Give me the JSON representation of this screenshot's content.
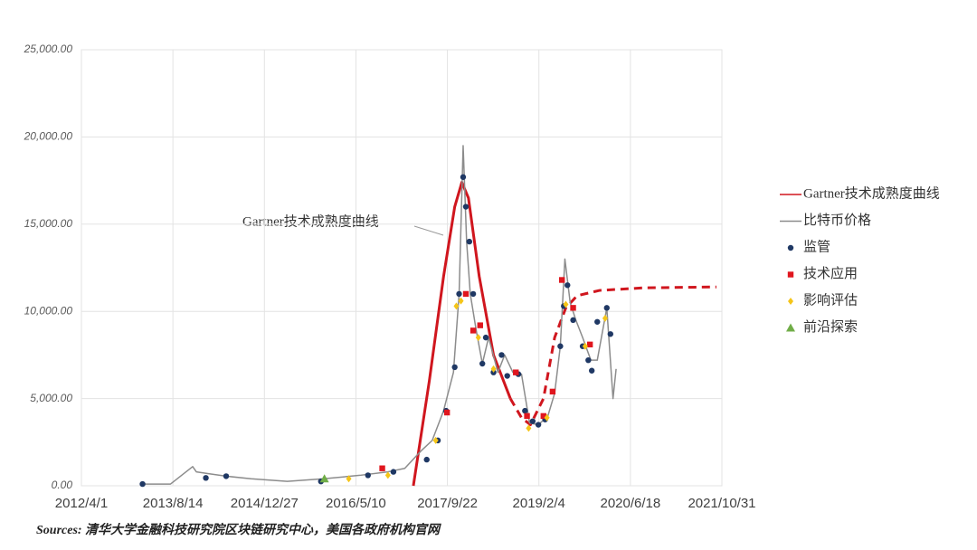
{
  "chart_data": {
    "type": "combo",
    "annotation": "Gartner技术成熟度曲线",
    "source": "Sources: 清华大学金融科技研究院区块链研究中心，美国各政府机构官网",
    "xlim": [
      "2012/4/1",
      "2021/10/31"
    ],
    "xticks": [
      "2012/4/1",
      "2013/8/14",
      "2014/12/27",
      "2016/5/10",
      "2017/9/22",
      "2019/2/4",
      "2020/6/18",
      "2021/10/31"
    ],
    "ylim": [
      0,
      25000
    ],
    "yticks": [
      {
        "value": 0,
        "label": "0.00"
      },
      {
        "value": 5000,
        "label": "5,000.00"
      },
      {
        "value": 10000,
        "label": "10,000.00"
      },
      {
        "value": 15000,
        "label": "15,000.00"
      },
      {
        "value": 20000,
        "label": "20,000.00"
      },
      {
        "value": 25000,
        "label": "25,000.00"
      }
    ],
    "grid": true,
    "series": [
      {
        "name": "Gartner技术成熟度曲线",
        "kind": "line",
        "color": "#d0161e",
        "width": 3,
        "x": [
          "2017/3/20",
          "2017/6/15",
          "2017/9/1",
          "2017/11/1",
          "2017/12/10",
          "2018/1/15",
          "2018/3/15",
          "2018/6/1",
          "2018/9/1",
          "2018/11/1",
          "2018/12/20",
          "2019/3/1",
          "2019/5/1",
          "2019/7/1",
          "2019/9/1",
          "2020/1/1",
          "2020/9/1",
          "2021/10/1"
        ],
        "values": [
          0,
          6000,
          12000,
          16000,
          17400,
          16500,
          12000,
          7500,
          5000,
          3900,
          3500,
          5000,
          8500,
          10200,
          10900,
          11200,
          11350,
          11400
        ],
        "styles": [
          "solid",
          "solid",
          "solid",
          "solid",
          "solid",
          "solid",
          "solid",
          "solid",
          "solid",
          "dashed",
          "dashed",
          "dashed",
          "dashed",
          "dashed",
          "dashed",
          "dashed",
          "dashed",
          "dashed"
        ]
      },
      {
        "name": "比特币价格",
        "kind": "line",
        "color": "#8c8c8c",
        "width": 1.5,
        "x": [
          "2013/3/1",
          "2013/8/1",
          "2013/11/30",
          "2013/12/20",
          "2014/2/20",
          "2014/6/1",
          "2014/10/15",
          "2015/5/1",
          "2015/11/15",
          "2016/6/1",
          "2016/11/1",
          "2017/2/1",
          "2017/5/1",
          "2017/7/1",
          "2017/9/1",
          "2017/10/25",
          "2017/11/25",
          "2017/12/17",
          "2018/1/5",
          "2018/1/25",
          "2018/2/25",
          "2018/4/1",
          "2018/5/5",
          "2018/6/25",
          "2018/8/1",
          "2018/9/15",
          "2018/11/1",
          "2018/12/15",
          "2019/2/1",
          "2019/3/25",
          "2019/5/1",
          "2019/6/1",
          "2019/6/26",
          "2019/7/25",
          "2019/8/25",
          "2019/10/1",
          "2019/11/15",
          "2019/12/20",
          "2020/2/10",
          "2020/3/15",
          "2020/4/1"
        ],
        "values": [
          100,
          100,
          1100,
          800,
          700,
          550,
          400,
          250,
          400,
          600,
          800,
          1000,
          2000,
          2600,
          4300,
          6500,
          11000,
          19500,
          14000,
          11000,
          9000,
          7000,
          8500,
          6500,
          7500,
          6500,
          6400,
          3600,
          3500,
          4000,
          5300,
          8000,
          13000,
          10500,
          9500,
          8500,
          7200,
          7200,
          10200,
          5000,
          6700
        ]
      },
      {
        "name": "监管",
        "kind": "scatter",
        "marker": "circle",
        "color": "#1f3864",
        "x": [
          "2013/3/1",
          "2014/2/10",
          "2014/6/1",
          "2015/11/1",
          "2016/7/15",
          "2016/12/1",
          "2017/6/1",
          "2017/8/1",
          "2017/9/15",
          "2017/11/1",
          "2017/11/25",
          "2017/12/17",
          "2018/1/1",
          "2018/1/20",
          "2018/2/10",
          "2018/4/1",
          "2018/4/20",
          "2018/6/1",
          "2018/7/15",
          "2018/8/15",
          "2018/10/15",
          "2018/11/20",
          "2019/1/1",
          "2019/2/1",
          "2019/3/10",
          "2019/6/1",
          "2019/6/20",
          "2019/7/10",
          "2019/8/10",
          "2019/10/1",
          "2019/11/1",
          "2019/11/20",
          "2019/12/20",
          "2020/2/10",
          "2020/3/1"
        ],
        "values": [
          100,
          450,
          550,
          250,
          600,
          800,
          1500,
          2600,
          4300,
          6800,
          11000,
          17700,
          16000,
          14000,
          11000,
          7000,
          8500,
          6500,
          7500,
          6300,
          6400,
          4300,
          3700,
          3500,
          3800,
          8000,
          10300,
          11500,
          9500,
          8000,
          7200,
          6600,
          9400,
          10200,
          8700
        ]
      },
      {
        "name": "技术应用",
        "kind": "scatter",
        "marker": "square",
        "color": "#e0161e",
        "x": [
          "2016/10/1",
          "2017/9/20",
          "2018/1/1",
          "2018/2/10",
          "2018/3/20",
          "2018/10/1",
          "2018/12/1",
          "2019/3/1",
          "2019/4/20",
          "2019/6/10",
          "2019/8/10",
          "2019/11/10"
        ],
        "values": [
          1000,
          4200,
          11000,
          8900,
          9200,
          6500,
          4000,
          4000,
          5400,
          11800,
          10200,
          8100
        ]
      },
      {
        "name": "影响评估",
        "kind": "scatter",
        "marker": "diamond",
        "color": "#f5c518",
        "x": [
          "2016/4/1",
          "2016/11/1",
          "2017/7/20",
          "2017/11/10",
          "2017/12/5",
          "2018/3/10",
          "2018/6/1",
          "2018/12/10",
          "2019/3/20",
          "2019/7/1",
          "2019/10/15",
          "2020/2/1"
        ],
        "values": [
          400,
          600,
          2600,
          10300,
          10600,
          8500,
          6700,
          3300,
          3900,
          10400,
          8000,
          9600
        ]
      },
      {
        "name": "前沿探索",
        "kind": "scatter",
        "marker": "triangle",
        "color": "#70ad47",
        "x": [
          "2015/11/20"
        ],
        "values": [
          400
        ]
      }
    ]
  }
}
